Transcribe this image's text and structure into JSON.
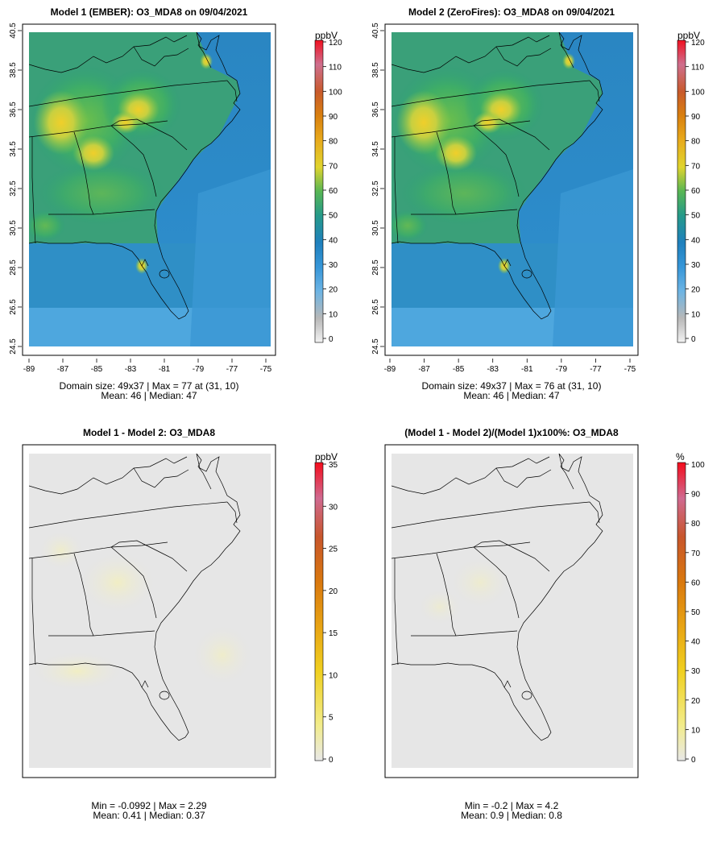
{
  "chart_data": [
    {
      "type": "heatmap",
      "title": "Model 1 (EMBER): O3_MDA8 on 09/04/2021",
      "x_ticks": [
        "-89",
        "-87",
        "-85",
        "-83",
        "-81",
        "-79",
        "-77",
        "-75"
      ],
      "y_ticks": [
        "24.5",
        "26.5",
        "28.5",
        "30.5",
        "32.5",
        "34.5",
        "36.5",
        "38.5",
        "40.5"
      ],
      "xlim": [
        -89,
        -75
      ],
      "ylim": [
        24.5,
        40.5
      ],
      "colorbar": {
        "unit": "ppbV",
        "ticks": [
          "0",
          "10",
          "20",
          "30",
          "40",
          "50",
          "60",
          "70",
          "80",
          "90",
          "100",
          "110",
          "120"
        ],
        "range": [
          0,
          120
        ]
      },
      "stats_line1": "Domain size: 49x37 | Max = 77 at (31, 10)",
      "stats_line2": "Mean: 46 |  Median: 47",
      "field": {
        "mean": 46,
        "max": 77
      }
    },
    {
      "type": "heatmap",
      "title": "Model 2 (ZeroFires): O3_MDA8 on 09/04/2021",
      "x_ticks": [
        "-89",
        "-87",
        "-85",
        "-83",
        "-81",
        "-79",
        "-77",
        "-75"
      ],
      "y_ticks": [
        "24.5",
        "26.5",
        "28.5",
        "30.5",
        "32.5",
        "34.5",
        "36.5",
        "38.5",
        "40.5"
      ],
      "xlim": [
        -89,
        -75
      ],
      "ylim": [
        24.5,
        40.5
      ],
      "colorbar": {
        "unit": "ppbV",
        "ticks": [
          "0",
          "10",
          "20",
          "30",
          "40",
          "50",
          "60",
          "70",
          "80",
          "90",
          "100",
          "110",
          "120"
        ],
        "range": [
          0,
          120
        ]
      },
      "stats_line1": "Domain size: 49x37 | Max = 76 at (31, 10)",
      "stats_line2": "Mean: 46 |  Median: 47",
      "field": {
        "mean": 46,
        "max": 76
      }
    },
    {
      "type": "heatmap",
      "title": "Model 1 - Model 2: O3_MDA8",
      "colorbar": {
        "unit": "ppbV",
        "ticks": [
          "0",
          "5",
          "10",
          "15",
          "20",
          "25",
          "30",
          "35"
        ],
        "range": [
          0,
          35
        ]
      },
      "stats_line1": "Min = -0.0992 | Max = 2.29",
      "stats_line2": "Mean: 0.41 |  Median: 0.37",
      "field": {
        "min": -0.0992,
        "max": 2.29
      }
    },
    {
      "type": "heatmap",
      "title": "(Model 1 - Model 2)/(Model 1)x100%: O3_MDA8",
      "colorbar": {
        "unit": "%",
        "ticks": [
          "0",
          "10",
          "20",
          "30",
          "40",
          "50",
          "60",
          "70",
          "80",
          "90",
          "100"
        ],
        "range": [
          0,
          100
        ]
      },
      "stats_line1": "Min = -0.2 | Max = 4.2",
      "stats_line2": "Mean: 0.9 |  Median: 0.8",
      "field": {
        "min": -0.2,
        "max": 4.2
      }
    }
  ],
  "colors": {
    "frame": "#000000",
    "diff_background": "#e6e6e6",
    "ramp": [
      "#f0f0f0",
      "#b5b5b5",
      "#6aaee0",
      "#2f8fd0",
      "#1f7fba",
      "#2a9a86",
      "#5dbb4f",
      "#8fc840",
      "#e3d22c",
      "#e7a81c",
      "#d97a12",
      "#c8552a",
      "#cf6e8a",
      "#e0203c",
      "#ff0000"
    ]
  }
}
